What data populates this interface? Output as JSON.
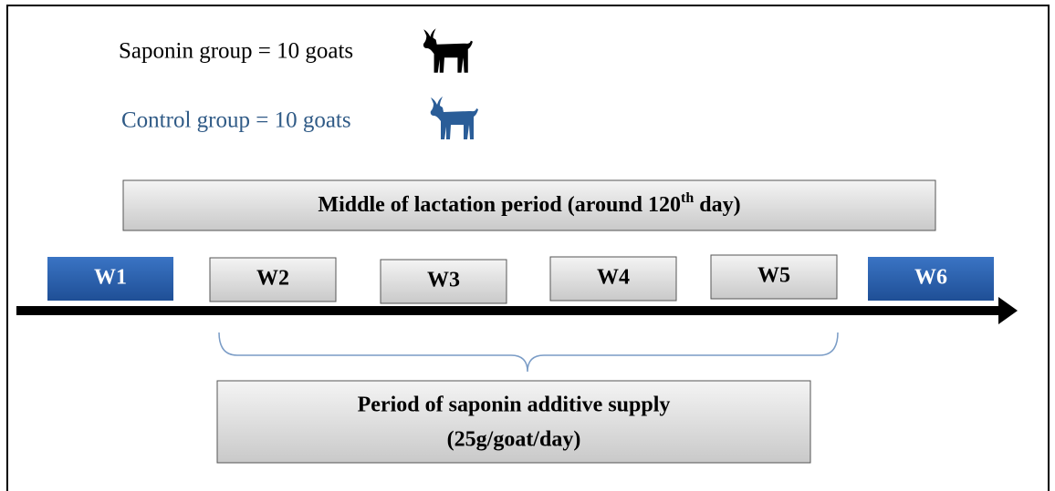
{
  "legend": [
    {
      "label": "Saponin group = 10 goats"
    },
    {
      "label": "Control group = 10 goats"
    }
  ],
  "banner": {
    "text_before": "Middle of lactation period (around 120",
    "superscript": "th",
    "text_after": " day)"
  },
  "weeks": [
    "W1",
    "W2",
    "W3",
    "W4",
    "W5",
    "W6"
  ],
  "period": {
    "line1": "Period of saponin additive supply",
    "line2": "(25g/goat/day)"
  }
}
